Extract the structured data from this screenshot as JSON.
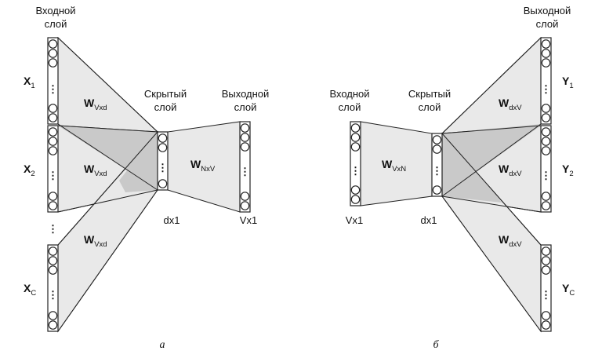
{
  "left": {
    "input_header": [
      "Входной",
      "слой"
    ],
    "hidden_header": [
      "Скрытый",
      "слой"
    ],
    "output_header": [
      "Выходной",
      "слой"
    ],
    "inputs": [
      {
        "main": "X",
        "sub": "1"
      },
      {
        "main": "X",
        "sub": "2"
      },
      {
        "main": "X",
        "sub": "C"
      }
    ],
    "weights_in": {
      "main": "W",
      "sub": "Vxd"
    },
    "weights_out": {
      "main": "W",
      "sub": "NxV"
    },
    "hidden_dim": "dx1",
    "output_dim": "Vx1",
    "dots": "⋮",
    "caption": "а"
  },
  "right": {
    "input_header": [
      "Входной",
      "слой"
    ],
    "hidden_header": [
      "Скрытый",
      "слой"
    ],
    "output_header": [
      "Выходной",
      "слой"
    ],
    "outputs": [
      {
        "main": "Y",
        "sub": "1"
      },
      {
        "main": "Y",
        "sub": "2"
      },
      {
        "main": "Y",
        "sub": "C"
      }
    ],
    "weights_in": {
      "main": "W",
      "sub": "VxN"
    },
    "weights_out": {
      "main": "W",
      "sub": "dxV"
    },
    "input_dim": "Vx1",
    "hidden_dim": "dx1",
    "caption": "б"
  }
}
